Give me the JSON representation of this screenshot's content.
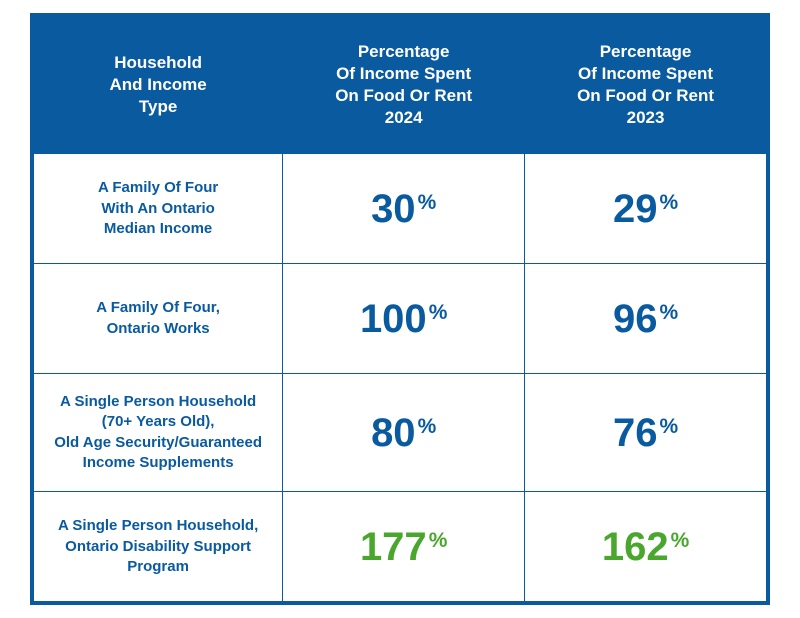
{
  "colors": {
    "border": "#0a5aa0",
    "header_bg": "#0a5aa0",
    "header_text": "#ffffff",
    "label_text": "#0a5aa0",
    "value_blue": "#0a5aa0",
    "value_green": "#4aa72d"
  },
  "table": {
    "columns": [
      "Household\nAnd Income\nType",
      "Percentage\nOf Income Spent\nOn Food Or Rent\n2024",
      "Percentage\nOf Income Spent\nOn Food Or Rent\n2023"
    ],
    "rows": [
      {
        "label": "A Family Of Four\nWith An Ontario\nMedian Income",
        "values": [
          {
            "num": "30",
            "color": "blue"
          },
          {
            "num": "29",
            "color": "blue"
          }
        ]
      },
      {
        "label": "A Family Of Four,\nOntario Works",
        "values": [
          {
            "num": "100",
            "color": "blue"
          },
          {
            "num": "96",
            "color": "blue"
          }
        ]
      },
      {
        "label": "A Single Person Household\n(70+ Years Old),\nOld Age Security/Guaranteed\nIncome Supplements",
        "values": [
          {
            "num": "80",
            "color": "blue"
          },
          {
            "num": "76",
            "color": "blue"
          }
        ]
      },
      {
        "label": "A Single Person Household,\nOntario Disability Support\nProgram",
        "values": [
          {
            "num": "177",
            "color": "green"
          },
          {
            "num": "162",
            "color": "green"
          }
        ]
      }
    ],
    "percent_symbol": "%"
  }
}
